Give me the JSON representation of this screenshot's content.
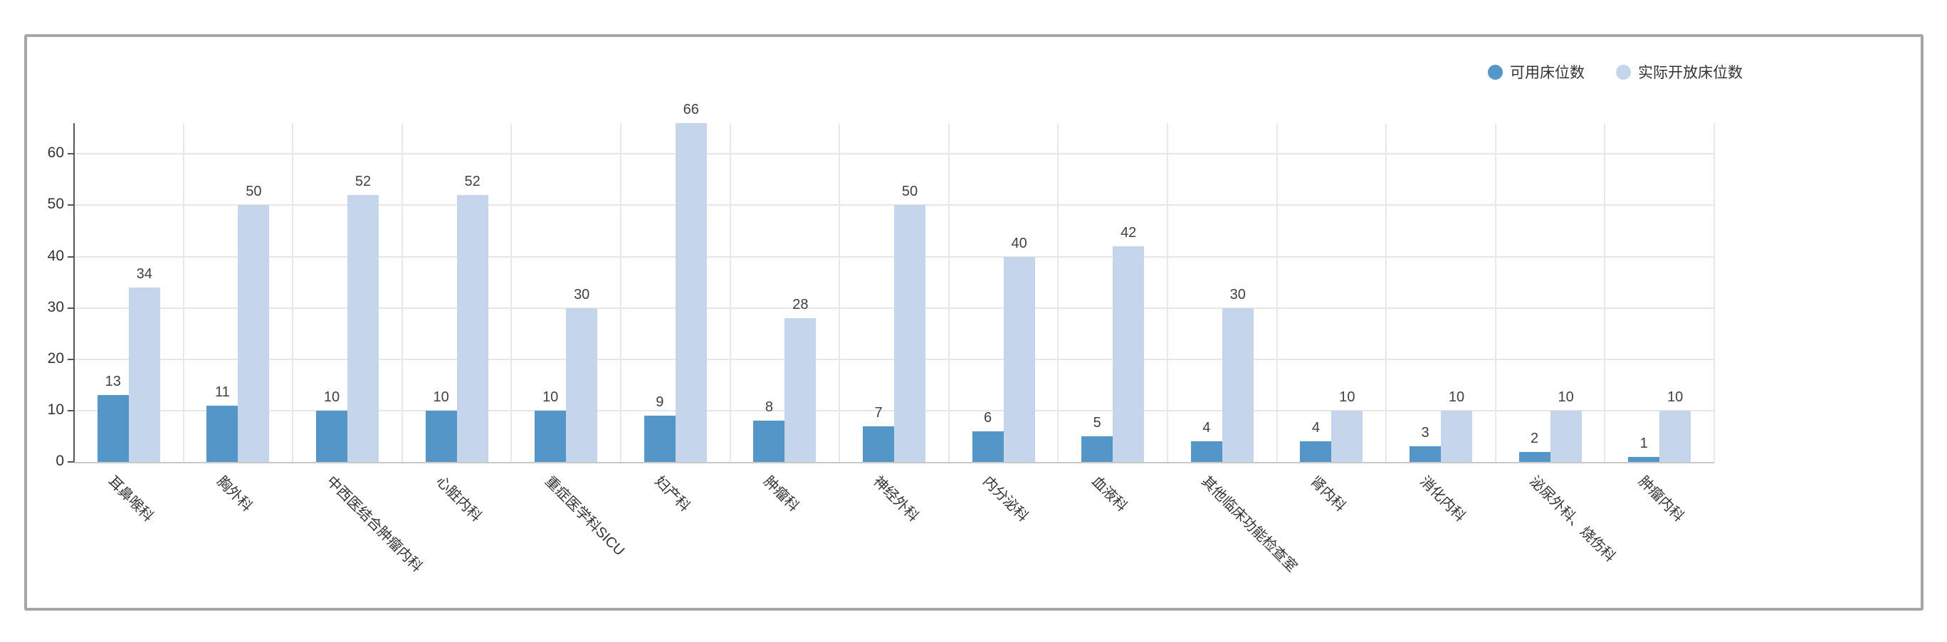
{
  "legend": {
    "items": [
      {
        "label": "可用床位数",
        "color": "#5596c8"
      },
      {
        "label": "实际开放床位数",
        "color": "#c5d6ec"
      }
    ]
  },
  "chart_data": {
    "type": "bar",
    "title": "",
    "xlabel": "",
    "ylabel": "",
    "categories": [
      "耳鼻喉科",
      "胸外科",
      "中西医结合肿瘤内科",
      "心脏内科",
      "重症医学科SICU",
      "妇产科",
      "肿瘤科",
      "神经外科",
      "内分泌科",
      "血液科",
      "其他临床功能检查室",
      "肾内科",
      "消化内科",
      "泌尿外科、烧伤科",
      "肿瘤内科"
    ],
    "series": [
      {
        "name": "可用床位数",
        "color": "#5596c8",
        "values": [
          13,
          11,
          10,
          10,
          10,
          9,
          8,
          7,
          6,
          5,
          4,
          4,
          3,
          2,
          1
        ]
      },
      {
        "name": "实际开放床位数",
        "color": "#c5d6ec",
        "values": [
          34,
          50,
          52,
          52,
          30,
          66,
          28,
          50,
          40,
          42,
          30,
          10,
          10,
          10,
          10
        ]
      }
    ],
    "y_ticks": [
      0,
      10,
      20,
      30,
      40,
      50,
      60
    ],
    "ylim": [
      0,
      66
    ],
    "grid": true,
    "legend_position": "top-right",
    "bar_value_labels": true,
    "x_label_rotation": 45
  },
  "colors": {
    "background": "#ffffff",
    "card_border": "#a6a6a6",
    "grid_line": "#e6e6e6",
    "axis_line": "#555555",
    "text": "#333333",
    "value_label": "#404040"
  }
}
